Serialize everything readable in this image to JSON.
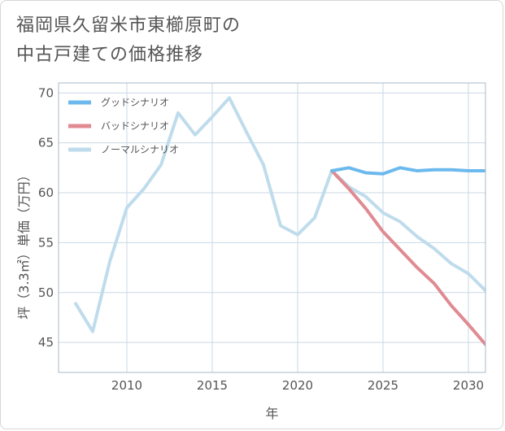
{
  "title_line1": "福岡県久留米市東櫛原町の",
  "title_line2": "中古戸建ての価格推移",
  "colors": {
    "good": "#6cb9ee",
    "bad": "#e08a92",
    "normal": "#bfdcec",
    "grid": "#c9d9e5",
    "frame": "#a9b9c8"
  },
  "chart_data": {
    "type": "line",
    "title": "福岡県久留米市東櫛原町の中古戸建ての価格推移",
    "xlabel": "年",
    "ylabel": "坪（3.3㎡）単価（万円）",
    "xlim": [
      2006,
      2031
    ],
    "ylim": [
      42,
      71
    ],
    "xticks": [
      2010,
      2015,
      2020,
      2025,
      2030
    ],
    "yticks": [
      45,
      50,
      55,
      60,
      65,
      70
    ],
    "grid": true,
    "legend_position": "top-left",
    "series": [
      {
        "name": "グッドシナリオ",
        "color": "#6cb9ee",
        "x": [
          2022,
          2023,
          2024,
          2025,
          2026,
          2027,
          2028,
          2029,
          2030,
          2031
        ],
        "y": [
          62.2,
          62.5,
          62.0,
          61.9,
          62.5,
          62.2,
          62.3,
          62.3,
          62.2,
          62.2
        ]
      },
      {
        "name": "バッドシナリオ",
        "color": "#e08a92",
        "x": [
          2022,
          2023,
          2024,
          2025,
          2026,
          2027,
          2028,
          2029,
          2030,
          2031
        ],
        "y": [
          62.2,
          60.4,
          58.4,
          56.1,
          54.3,
          52.5,
          50.9,
          48.7,
          46.8,
          44.8
        ]
      },
      {
        "name": "ノーマルシナリオ",
        "color": "#bfdcec",
        "x": [
          2007,
          2008,
          2009,
          2010,
          2011,
          2012,
          2013,
          2014,
          2015,
          2016,
          2017,
          2018,
          2019,
          2020,
          2021,
          2022,
          2023,
          2024,
          2025,
          2026,
          2027,
          2028,
          2029,
          2030,
          2031
        ],
        "y": [
          48.9,
          46.1,
          53.1,
          58.5,
          60.4,
          62.8,
          68.0,
          65.8,
          67.6,
          69.5,
          66.1,
          62.8,
          56.7,
          55.8,
          57.5,
          62.2,
          60.6,
          59.6,
          58.0,
          57.1,
          55.6,
          54.4,
          52.9,
          51.9,
          50.2
        ]
      }
    ]
  }
}
